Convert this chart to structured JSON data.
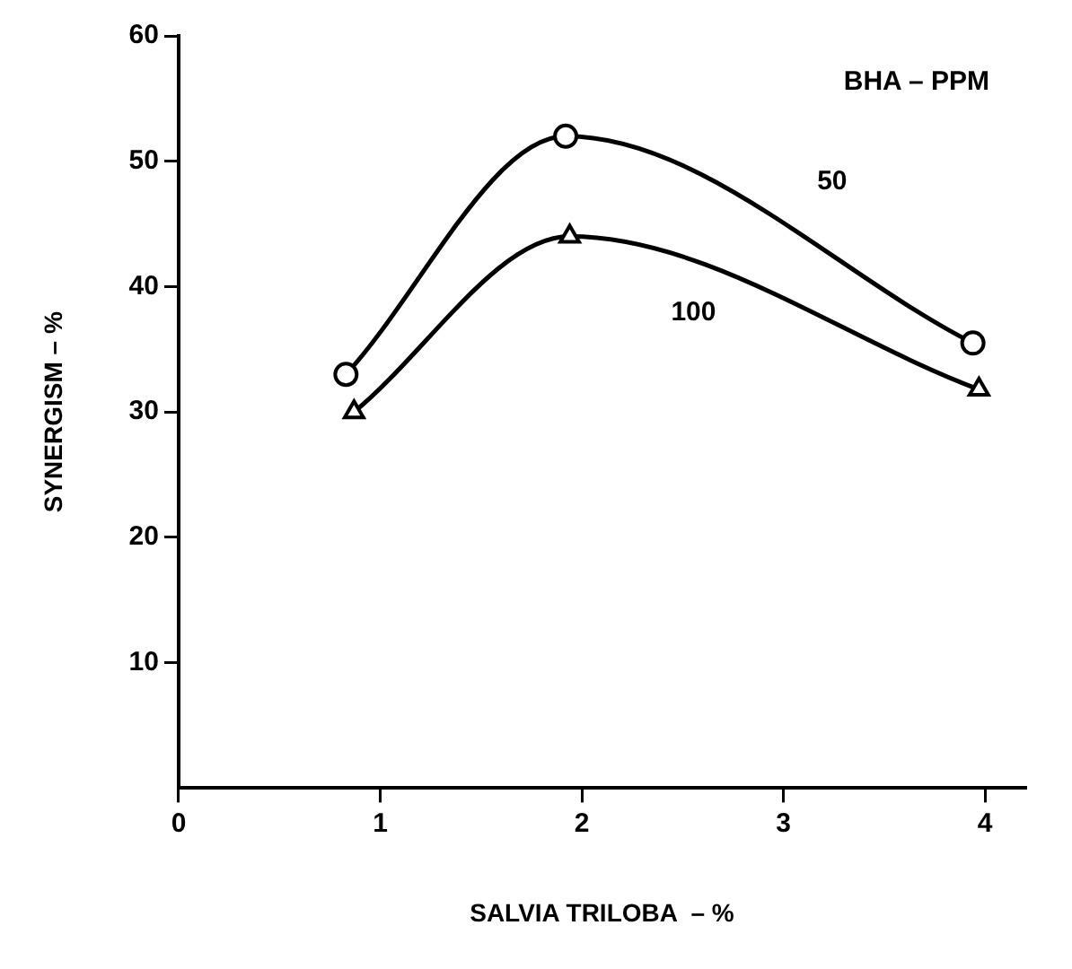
{
  "chart_data": {
    "type": "line",
    "xlabel": "SALVIA TRILOBA  – %",
    "ylabel": "SYNERGISM – %",
    "legend_title": "BHA – PPM",
    "series": [
      {
        "name": "50",
        "color": "#000000",
        "marker": "circle",
        "x": [
          0.83,
          1.92,
          3.94
        ],
        "values": [
          33,
          52,
          35.5
        ]
      },
      {
        "name": "100",
        "color": "#000000",
        "marker": "triangle",
        "x": [
          0.87,
          1.94,
          3.97
        ],
        "values": [
          30,
          44,
          31.8
        ]
      }
    ],
    "xlim": [
      0,
      4.2
    ],
    "xticks": [
      0,
      1,
      2,
      3,
      4
    ],
    "ylim": [
      0,
      60
    ],
    "yticks": [
      10,
      20,
      30,
      40,
      50,
      60
    ],
    "grid": false,
    "legend": false
  }
}
